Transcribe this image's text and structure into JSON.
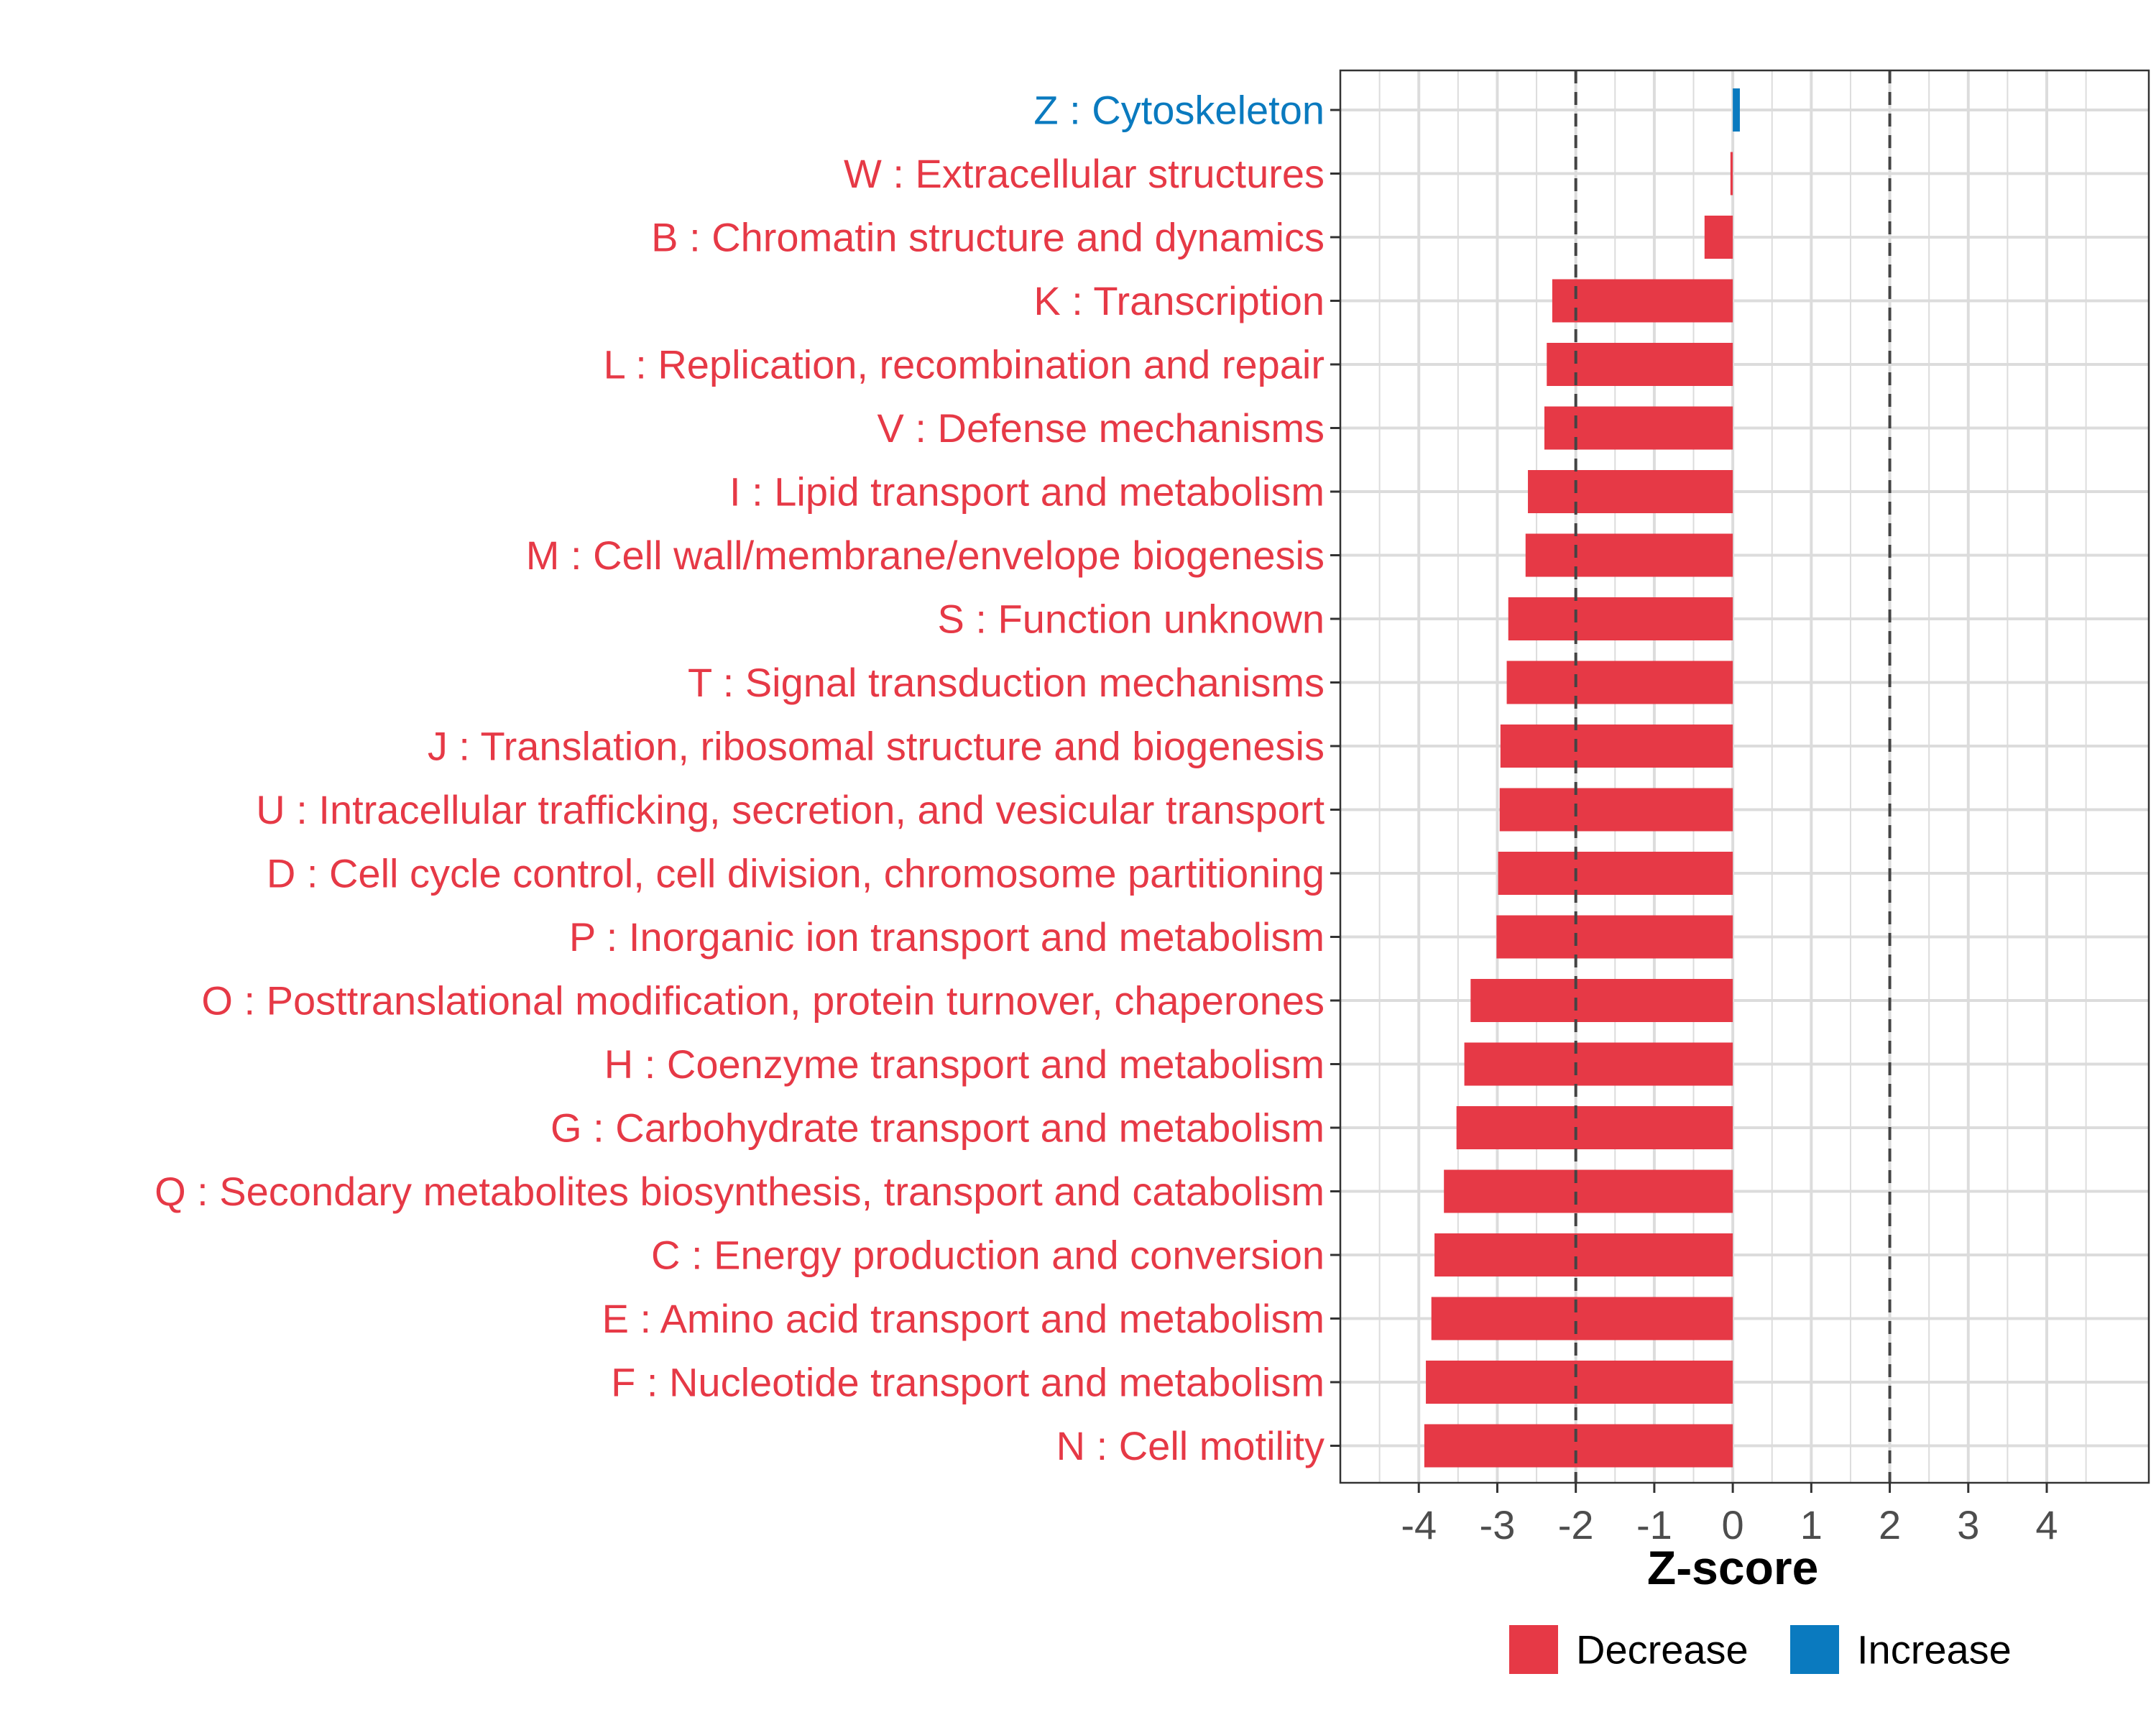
{
  "chart_data": {
    "type": "bar",
    "orientation": "horizontal",
    "xlabel": "Z-score",
    "ylabel": "",
    "title": "",
    "xlim": [
      -5.0,
      5.3
    ],
    "xticks": [
      -4,
      -3,
      -2,
      -1,
      0,
      1,
      2,
      3,
      4
    ],
    "xtick_labels": [
      "-4",
      "-3",
      "-2",
      "-1",
      "0",
      "1",
      "2",
      "3",
      "4"
    ],
    "reference_lines": [
      -2,
      2
    ],
    "grid": true,
    "legend_position": "bottom",
    "categories": [
      "Z : Cytoskeleton",
      "W : Extracellular structures",
      "B : Chromatin structure and dynamics",
      "K : Transcription",
      "L : Replication, recombination and repair",
      "V : Defense mechanisms",
      "I : Lipid transport and metabolism",
      "M : Cell wall/membrane/envelope biogenesis",
      "S : Function unknown",
      "T : Signal transduction mechanisms",
      "J : Translation, ribosomal structure and biogenesis",
      "U : Intracellular trafficking, secretion, and vesicular transport",
      "D : Cell cycle control, cell division, chromosome partitioning",
      "P : Inorganic ion transport and metabolism",
      "O : Posttranslational modification, protein turnover, chaperones",
      "H : Coenzyme transport and metabolism",
      "G : Carbohydrate transport and metabolism",
      "Q : Secondary metabolites biosynthesis, transport and catabolism",
      "C : Energy production and conversion",
      "E : Amino acid transport and metabolism",
      "F : Nucleotide transport and metabolism",
      "N : Cell motility"
    ],
    "values": [
      0.09,
      -0.03,
      -0.36,
      -2.3,
      -2.37,
      -2.4,
      -2.61,
      -2.64,
      -2.86,
      -2.88,
      -2.96,
      -2.97,
      -2.99,
      -3.01,
      -3.34,
      -3.42,
      -3.52,
      -3.68,
      -3.8,
      -3.84,
      -3.91,
      -3.93
    ],
    "groups": [
      "Increase",
      "Decrease",
      "Decrease",
      "Decrease",
      "Decrease",
      "Decrease",
      "Decrease",
      "Decrease",
      "Decrease",
      "Decrease",
      "Decrease",
      "Decrease",
      "Decrease",
      "Decrease",
      "Decrease",
      "Decrease",
      "Decrease",
      "Decrease",
      "Decrease",
      "Decrease",
      "Decrease",
      "Decrease"
    ],
    "legend": [
      {
        "name": "Decrease",
        "color": "#e63946"
      },
      {
        "name": "Increase",
        "color": "#0a7abf"
      }
    ]
  }
}
